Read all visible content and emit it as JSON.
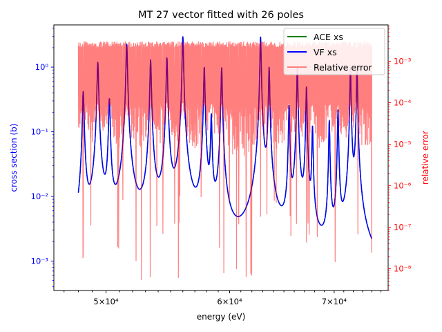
{
  "chart_data": {
    "type": "line",
    "title": "MT 27 vector fitted with 26 poles",
    "xlabel": "energy (eV)",
    "ylabel_left": "cross section (b)",
    "ylabel_right": "relative error",
    "xscale": "log",
    "yscale_left": "log",
    "yscale_right": "log",
    "xlim": [
      46300,
      75800
    ],
    "ylim_left": [
      0.00035,
      4.5
    ],
    "ylim_right": [
      3e-09,
      0.0075
    ],
    "x_ticks": [
      {
        "value": 50000,
        "label": "5×10⁴"
      },
      {
        "value": 60000,
        "label": "6×10⁴"
      },
      {
        "value": 70000,
        "label": "7×10⁴"
      }
    ],
    "y_left_ticks": [
      {
        "value": 0.001,
        "label": "10⁻³"
      },
      {
        "value": 0.01,
        "label": "10⁻²"
      },
      {
        "value": 0.1,
        "label": "10⁻¹"
      },
      {
        "value": 1,
        "label": "10⁰"
      }
    ],
    "y_right_ticks": [
      {
        "value": 1e-08,
        "label": "10⁻⁸"
      },
      {
        "value": 1e-07,
        "label": "10⁻⁷"
      },
      {
        "value": 1e-06,
        "label": "10⁻⁶"
      },
      {
        "value": 1e-05,
        "label": "10⁻⁵"
      },
      {
        "value": 0.0001,
        "label": "10⁻⁴"
      },
      {
        "value": 0.001,
        "label": "10⁻³"
      }
    ],
    "energy_range": [
      48000,
      74000
    ],
    "resonances": [
      {
        "energy": 48350,
        "peak_xs": 0.42
      },
      {
        "energy": 49400,
        "peak_xs": 1.2
      },
      {
        "energy": 50250,
        "peak_xs": 0.32
      },
      {
        "energy": 51550,
        "peak_xs": 2.3
      },
      {
        "energy": 53400,
        "peak_xs": 1.3
      },
      {
        "energy": 54700,
        "peak_xs": 1.4
      },
      {
        "energy": 56000,
        "peak_xs": 3.0
      },
      {
        "energy": 57800,
        "peak_xs": 1.0
      },
      {
        "energy": 58400,
        "peak_xs": 0.18
      },
      {
        "energy": 59300,
        "peak_xs": 1.0
      },
      {
        "energy": 62800,
        "peak_xs": 3.0
      },
      {
        "energy": 63600,
        "peak_xs": 1.0
      },
      {
        "energy": 65500,
        "peak_xs": 0.25
      },
      {
        "energy": 66300,
        "peak_xs": 1.0
      },
      {
        "energy": 67200,
        "peak_xs": 0.5
      },
      {
        "energy": 67800,
        "peak_xs": 0.12
      },
      {
        "energy": 69500,
        "peak_xs": 0.15
      },
      {
        "energy": 70400,
        "peak_xs": 0.22
      },
      {
        "energy": 71700,
        "peak_xs": 1.0
      },
      {
        "energy": 72400,
        "peak_xs": 1.0
      }
    ],
    "relative_error_envelope": {
      "typical_max": 0.003,
      "mid_band": 0.0002,
      "min": 5e-09
    },
    "series": [
      {
        "name": "ACE xs",
        "color": "#008000",
        "axis": "left"
      },
      {
        "name": "VF xs",
        "color": "#0000ff",
        "axis": "left"
      },
      {
        "name": "Relative error",
        "color": "#ff7f7f",
        "axis": "right"
      }
    ],
    "legend_position": "top-right",
    "left_axis_color": "#0000ff",
    "right_axis_color": "#ff0000",
    "grid": false
  }
}
